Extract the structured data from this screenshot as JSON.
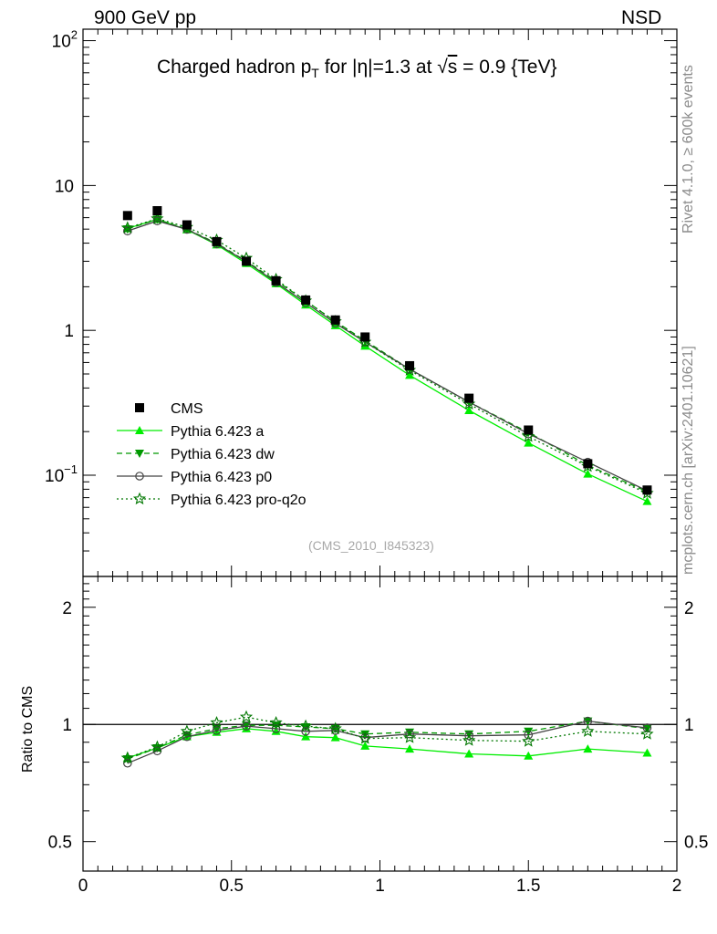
{
  "header": {
    "left_label": "900 GeV pp",
    "right_label": "NSD"
  },
  "side_labels": {
    "rivet": "Rivet 4.1.0, ≥ 600k events",
    "mcplots": "mcplots.cern.ch [arXiv:2401.10621]"
  },
  "colors": {
    "cms": "#000000",
    "pythia_a": "#00ee00",
    "pythia_dw": "#009900",
    "pythia_p0": "#444444",
    "pythia_pro_q2o": "#007700"
  },
  "chart_data": [
    {
      "panel": "main",
      "type": "line",
      "title": {
        "prefix": "Charged hadron p",
        "sub": "T",
        "mid": " for |η|=1.3 at ",
        "sqrt": "√",
        "s": "s",
        "suffix": " = 0.9 {TeV}"
      },
      "watermark": "(CMS_2010_I845323)",
      "yscale": "log",
      "ylim": [
        0.02,
        120
      ],
      "xlim": [
        0,
        2
      ],
      "yticks": [
        {
          "value": 100,
          "label": "10",
          "exp": "2"
        },
        {
          "value": 10,
          "label": "10",
          "exp": ""
        },
        {
          "value": 1,
          "label": "1",
          "exp": ""
        },
        {
          "value": 0.1,
          "label": "10",
          "exp": "−1"
        }
      ],
      "x": [
        0.15,
        0.25,
        0.35,
        0.45,
        0.55,
        0.65,
        0.75,
        0.85,
        0.95,
        1.1,
        1.3,
        1.5,
        1.7,
        1.9
      ],
      "legend_position": "lower-left",
      "series": [
        {
          "name": "CMS",
          "marker": "square",
          "line": "none",
          "color_key": "cms",
          "values": [
            6.2,
            6.7,
            5.35,
            4.1,
            3.0,
            2.2,
            1.62,
            1.18,
            0.9,
            0.57,
            0.34,
            0.205,
            0.12,
            0.079
          ]
        },
        {
          "name": "Pythia 6.423 a",
          "marker": "triangle-up",
          "line": "solid",
          "color_key": "pythia_a",
          "values": [
            5.05,
            5.85,
            4.95,
            3.9,
            2.9,
            2.1,
            1.5,
            1.08,
            0.78,
            0.49,
            0.28,
            0.167,
            0.102,
            0.066
          ]
        },
        {
          "name": "Pythia 6.423 dw",
          "marker": "triangle-down",
          "line": "dashed",
          "color_key": "pythia_dw",
          "values": [
            5.0,
            5.85,
            5.0,
            4.0,
            3.0,
            2.2,
            1.6,
            1.15,
            0.85,
            0.54,
            0.32,
            0.197,
            0.117,
            0.077
          ]
        },
        {
          "name": "Pythia 6.423 p0",
          "marker": "circle-open",
          "line": "solid",
          "color_key": "pythia_p0",
          "values": [
            4.85,
            5.7,
            4.98,
            3.95,
            2.98,
            2.14,
            1.55,
            1.12,
            0.83,
            0.54,
            0.32,
            0.193,
            0.123,
            0.078
          ]
        },
        {
          "name": "Pythia 6.423 pro-q2o",
          "marker": "star-open",
          "line": "dotted",
          "color_key": "pythia_pro_q2o",
          "values": [
            5.1,
            5.9,
            5.15,
            4.2,
            3.15,
            2.25,
            1.6,
            1.15,
            0.83,
            0.53,
            0.31,
            0.185,
            0.115,
            0.075
          ]
        }
      ]
    },
    {
      "panel": "ratio",
      "type": "line",
      "ylabel": "Ratio to CMS",
      "yscale": "log",
      "ylim": [
        0.42,
        2.4
      ],
      "xlim": [
        0,
        2
      ],
      "yticks": [
        {
          "value": 2,
          "label": "2"
        },
        {
          "value": 1,
          "label": "1"
        },
        {
          "value": 0.5,
          "label": "0.5"
        }
      ],
      "xticks": [
        {
          "value": 0,
          "label": "0"
        },
        {
          "value": 0.5,
          "label": "0.5"
        },
        {
          "value": 1,
          "label": "1"
        },
        {
          "value": 1.5,
          "label": "1.5"
        },
        {
          "value": 2,
          "label": "2"
        }
      ],
      "reference_line": 1,
      "x": [
        0.15,
        0.25,
        0.35,
        0.45,
        0.55,
        0.65,
        0.75,
        0.85,
        0.95,
        1.1,
        1.3,
        1.5,
        1.7,
        1.9
      ],
      "series": [
        {
          "name": "Pythia 6.423 a",
          "marker": "triangle-up",
          "line": "solid",
          "color_key": "pythia_a",
          "values": [
            0.82,
            0.87,
            0.93,
            0.955,
            0.975,
            0.96,
            0.93,
            0.925,
            0.88,
            0.865,
            0.84,
            0.83,
            0.865,
            0.845
          ]
        },
        {
          "name": "Pythia 6.423 dw",
          "marker": "triangle-down",
          "line": "dashed",
          "color_key": "pythia_dw",
          "values": [
            0.815,
            0.87,
            0.94,
            0.975,
            0.995,
            0.995,
            0.985,
            0.975,
            0.945,
            0.955,
            0.945,
            0.96,
            1.02,
            0.975
          ]
        },
        {
          "name": "Pythia 6.423 p0",
          "marker": "circle-open",
          "line": "solid",
          "color_key": "pythia_p0",
          "values": [
            0.795,
            0.855,
            0.93,
            0.965,
            0.99,
            0.975,
            0.96,
            0.965,
            0.925,
            0.945,
            0.935,
            0.94,
            1.02,
            0.98
          ]
        },
        {
          "name": "Pythia 6.423 pro-q2o",
          "marker": "star-open",
          "line": "dotted",
          "color_key": "pythia_pro_q2o",
          "values": [
            0.82,
            0.875,
            0.96,
            1.01,
            1.045,
            1.01,
            0.99,
            0.975,
            0.92,
            0.925,
            0.91,
            0.905,
            0.96,
            0.945
          ]
        }
      ]
    }
  ]
}
